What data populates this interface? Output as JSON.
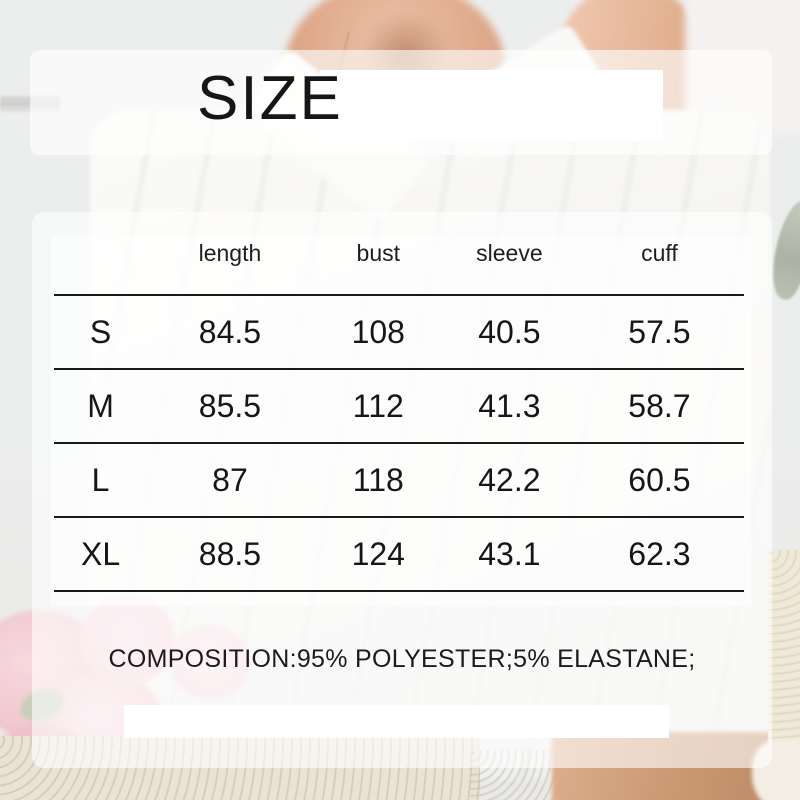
{
  "chart_data": {
    "type": "table",
    "title": "SIZE",
    "columns": [
      "",
      "length",
      "bust",
      "sleeve",
      "cuff"
    ],
    "rows": [
      [
        "S",
        "84.5",
        "108",
        "40.5",
        "57.5"
      ],
      [
        "M",
        "85.5",
        "112",
        "41.3",
        "58.7"
      ],
      [
        "L",
        "87",
        "118",
        "42.2",
        "60.5"
      ],
      [
        "XL",
        "88.5",
        "124",
        "43.1",
        "62.3"
      ]
    ],
    "footnote": "COMPOSITION:95% POLYESTER;5% ELASTANE;"
  },
  "colors": {
    "table_line": "#191919",
    "text": "#161616",
    "panel_overlay": "rgba(255,255,255,0.6)",
    "highlight_box": "#ffffff"
  }
}
